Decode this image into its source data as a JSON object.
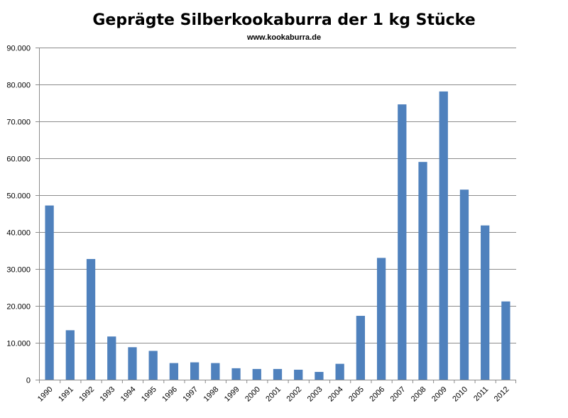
{
  "chart_data": {
    "type": "bar",
    "title": "Geprägte Silberkookaburra der 1 kg Stücke",
    "subtitle": "www.kookaburra.de",
    "xlabel": "",
    "ylabel": "",
    "categories": [
      "1990",
      "1991",
      "1992",
      "1993",
      "1994",
      "1995",
      "1996",
      "1997",
      "1998",
      "1999",
      "2000",
      "2001",
      "2002",
      "2003",
      "2004",
      "2005",
      "2006",
      "2007",
      "2008",
      "2009",
      "2010",
      "2011",
      "2012"
    ],
    "values": [
      47200,
      13400,
      32700,
      11700,
      8800,
      7800,
      4500,
      4700,
      4500,
      3100,
      2900,
      2900,
      2700,
      2100,
      4300,
      17300,
      33000,
      74600,
      59000,
      78100,
      51500,
      41800,
      21200
    ],
    "ylim": [
      0,
      90000
    ],
    "yticks": [
      0,
      10000,
      20000,
      30000,
      40000,
      50000,
      60000,
      70000,
      80000,
      90000
    ],
    "ytick_labels": [
      "0",
      "10.000",
      "20.000",
      "30.000",
      "40.000",
      "50.000",
      "60.000",
      "70.000",
      "80.000",
      "90.000"
    ],
    "grid": true,
    "legend": "none",
    "bar_color": "#4f81bd"
  }
}
